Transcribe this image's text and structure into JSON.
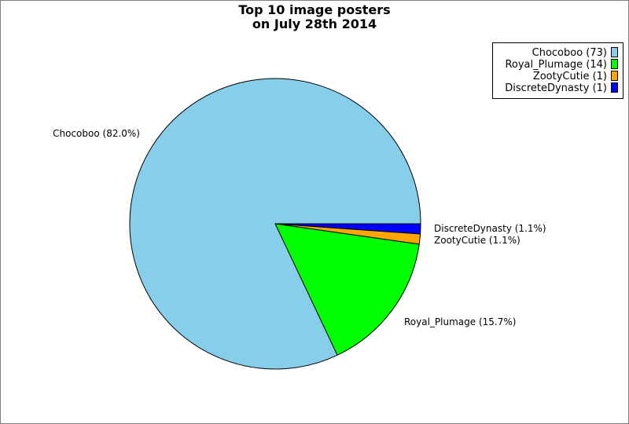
{
  "chart_data": {
    "type": "pie",
    "title": [
      "Top 10 image posters",
      "on July 28th 2014"
    ],
    "slices": [
      {
        "name": "Chocoboo",
        "value": 73,
        "percent_label": "Chocoboo (82.0%)",
        "legend_label": "Chocoboo (73)",
        "color": "#87ceeb"
      },
      {
        "name": "Royal_Plumage",
        "value": 14,
        "percent_label": "Royal_Plumage (15.7%)",
        "legend_label": "Royal_Plumage (14)",
        "color": "#00ff00"
      },
      {
        "name": "ZootyCutie",
        "value": 1,
        "percent_label": "ZootyCutie (1.1%)",
        "legend_label": "ZootyCutie (1)",
        "color": "#ffa500"
      },
      {
        "name": "DiscreteDynasty",
        "value": 1,
        "percent_label": "DiscreteDynasty (1.1%)",
        "legend_label": "DiscreteDynasty (1)",
        "color": "#0000ff"
      }
    ],
    "legend_position": "top-right"
  }
}
